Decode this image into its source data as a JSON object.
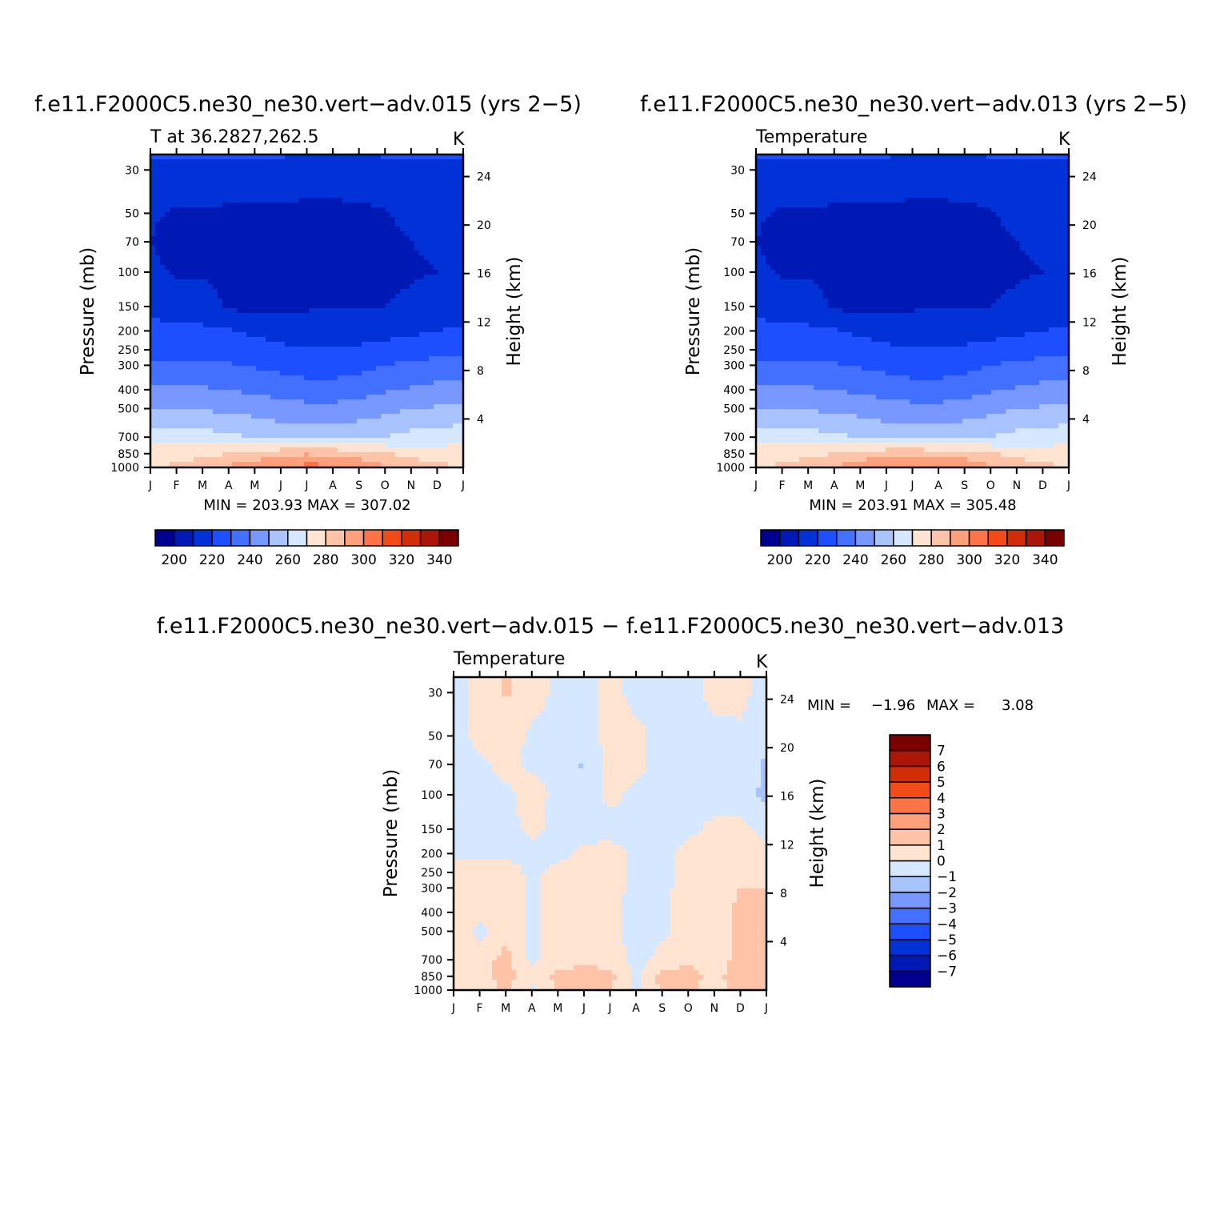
{
  "chart_data": [
    {
      "type": "heatmap",
      "title": "f.e11.F2000C5.ne30_ne30.vert−adv.015 (yrs 2−5)",
      "left_label": "T at 36.2827,262.5",
      "units": "K",
      "xlabel": "",
      "ylabel": "Pressure (mb)",
      "y2label": "Height (km)",
      "x_ticks": [
        "J",
        "F",
        "M",
        "A",
        "M",
        "J",
        "J",
        "A",
        "S",
        "O",
        "N",
        "D",
        "J"
      ],
      "pressure_ticks": [
        30,
        50,
        70,
        100,
        150,
        200,
        250,
        300,
        400,
        500,
        700,
        850,
        1000
      ],
      "pressure_tick_labels": [
        "30",
        "50",
        "70",
        "100",
        "150",
        "200",
        "250",
        "300",
        "400",
        "500",
        "700",
        "850",
        "1000"
      ],
      "ylim": [
        1000,
        25
      ],
      "height_ticks": [
        4,
        8,
        12,
        16,
        20,
        24
      ],
      "height_tick_labels": [
        "4",
        "8",
        "12",
        "16",
        "20",
        "24"
      ],
      "stats_text": "MIN = 203.93 MAX = 307.02",
      "min": 203.93,
      "max": 307.02,
      "colorbar": {
        "orientation": "horizontal",
        "levels": [
          200,
          210,
          220,
          230,
          240,
          250,
          260,
          270,
          280,
          290,
          300,
          310,
          320,
          330,
          340
        ],
        "tick_labels": [
          "200",
          "220",
          "240",
          "260",
          "280",
          "300",
          "320",
          "340"
        ],
        "colors": [
          "#00008f",
          "#0019b5",
          "#0032d7",
          "#1e4fff",
          "#4470ff",
          "#7898ff",
          "#a9c3ff",
          "#d6e8ff",
          "#ffe5d1",
          "#ffc4a7",
          "#ffa07d",
          "#ff7447",
          "#f34b18",
          "#d12d07",
          "#ab1606",
          "#7a0000"
        ]
      },
      "field": {
        "x_months": [
          "J",
          "F",
          "M",
          "A",
          "M",
          "J",
          "J",
          "A",
          "S",
          "O",
          "N",
          "D",
          "J"
        ],
        "pressure_levels": [
          25,
          30,
          50,
          70,
          100,
          150,
          200,
          250,
          300,
          400,
          500,
          700,
          850,
          1000
        ],
        "temperature_K": [
          [
            221,
            221,
            221,
            221,
            221,
            221,
            219,
            219,
            219,
            221,
            221,
            221,
            221
          ],
          [
            217,
            217,
            217,
            217,
            217,
            217,
            216,
            216,
            216,
            217,
            217,
            217,
            217
          ],
          [
            211,
            209,
            209,
            208,
            208,
            208,
            207,
            207,
            208,
            209,
            214,
            215,
            214
          ],
          [
            210,
            207,
            207,
            206,
            206,
            206,
            206,
            206,
            206,
            207,
            210,
            211,
            211
          ],
          [
            212,
            209,
            209,
            207,
            206,
            206,
            206,
            206,
            206,
            207,
            209,
            210,
            212
          ],
          [
            218,
            215,
            214,
            209,
            206,
            208,
            209,
            209,
            210,
            210,
            212,
            213,
            216
          ],
          [
            223,
            222,
            222,
            221,
            218,
            216,
            215,
            215,
            215,
            216,
            218,
            220,
            221
          ],
          [
            227,
            227,
            227,
            226,
            225,
            222,
            221,
            221,
            222,
            224,
            226,
            227,
            227
          ],
          [
            232,
            232,
            232,
            231,
            229,
            227,
            225,
            225,
            227,
            230,
            232,
            233,
            234
          ],
          [
            242,
            242,
            241,
            240,
            238,
            236,
            234,
            234,
            236,
            239,
            241,
            243,
            243
          ],
          [
            251,
            250,
            249,
            248,
            246,
            244,
            243,
            243,
            244,
            247,
            250,
            251,
            252
          ],
          [
            266,
            265,
            264,
            262,
            260,
            257,
            255,
            255,
            258,
            260,
            263,
            265,
            266
          ],
          [
            275,
            276,
            277,
            280,
            284,
            287,
            289,
            288,
            285,
            281,
            277,
            275,
            275
          ],
          [
            280,
            282,
            286,
            292,
            297,
            300,
            304,
            303,
            299,
            292,
            286,
            283,
            280
          ]
        ]
      }
    },
    {
      "type": "heatmap",
      "title": "f.e11.F2000C5.ne30_ne30.vert−adv.013 (yrs 2−5)",
      "left_label": "Temperature",
      "units": "K",
      "xlabel": "",
      "ylabel": "Pressure (mb)",
      "y2label": "Height (km)",
      "x_ticks": [
        "J",
        "F",
        "M",
        "A",
        "M",
        "J",
        "J",
        "A",
        "S",
        "O",
        "N",
        "D",
        "J"
      ],
      "pressure_ticks": [
        30,
        50,
        70,
        100,
        150,
        200,
        250,
        300,
        400,
        500,
        700,
        850,
        1000
      ],
      "pressure_tick_labels": [
        "30",
        "50",
        "70",
        "100",
        "150",
        "200",
        "250",
        "300",
        "400",
        "500",
        "700",
        "850",
        "1000"
      ],
      "ylim": [
        1000,
        25
      ],
      "height_ticks": [
        4,
        8,
        12,
        16,
        20,
        24
      ],
      "height_tick_labels": [
        "4",
        "8",
        "12",
        "16",
        "20",
        "24"
      ],
      "stats_text": "MIN = 203.91 MAX = 305.48",
      "min": 203.91,
      "max": 305.48,
      "colorbar": {
        "orientation": "horizontal",
        "levels": [
          200,
          210,
          220,
          230,
          240,
          250,
          260,
          270,
          280,
          290,
          300,
          310,
          320,
          330,
          340
        ],
        "tick_labels": [
          "200",
          "220",
          "240",
          "260",
          "280",
          "300",
          "320",
          "340"
        ],
        "colors": [
          "#00008f",
          "#0019b5",
          "#0032d7",
          "#1e4fff",
          "#4470ff",
          "#7898ff",
          "#a9c3ff",
          "#d6e8ff",
          "#ffe5d1",
          "#ffc4a7",
          "#ffa07d",
          "#ff7447",
          "#f34b18",
          "#d12d07",
          "#ab1606",
          "#7a0000"
        ]
      },
      "field": {
        "x_months": [
          "J",
          "F",
          "M",
          "A",
          "M",
          "J",
          "J",
          "A",
          "S",
          "O",
          "N",
          "D",
          "J"
        ],
        "pressure_levels": [
          25,
          30,
          50,
          70,
          100,
          150,
          200,
          250,
          300,
          400,
          500,
          700,
          850,
          1000
        ],
        "temperature_K": [
          [
            221,
            221,
            221,
            221,
            221,
            221,
            219,
            219,
            219,
            221,
            221,
            221,
            221
          ],
          [
            217,
            217,
            217,
            217,
            217,
            217,
            216,
            216,
            216,
            217,
            217,
            217,
            217
          ],
          [
            211,
            209,
            209,
            208,
            208,
            208,
            207,
            207,
            208,
            209,
            214,
            215,
            212
          ],
          [
            210,
            207,
            207,
            206,
            206,
            206,
            206,
            206,
            206,
            207,
            210,
            211,
            210
          ],
          [
            212,
            209,
            209,
            207,
            206,
            206,
            206,
            206,
            206,
            207,
            209,
            210,
            212
          ],
          [
            218,
            215,
            214,
            209,
            206,
            208,
            209,
            209,
            210,
            210,
            212,
            213,
            216
          ],
          [
            223,
            222,
            222,
            221,
            218,
            216,
            215,
            215,
            215,
            216,
            218,
            220,
            221
          ],
          [
            227,
            227,
            227,
            226,
            225,
            222,
            221,
            221,
            222,
            224,
            226,
            227,
            227
          ],
          [
            232,
            232,
            232,
            231,
            229,
            227,
            225,
            225,
            227,
            230,
            232,
            233,
            234
          ],
          [
            242,
            242,
            241,
            240,
            238,
            236,
            234,
            234,
            236,
            239,
            241,
            243,
            243
          ],
          [
            251,
            250,
            249,
            248,
            246,
            244,
            243,
            243,
            244,
            247,
            250,
            251,
            252
          ],
          [
            266,
            265,
            264,
            262,
            260,
            257,
            255,
            255,
            258,
            260,
            263,
            265,
            266
          ],
          [
            275,
            276,
            277,
            280,
            284,
            287,
            288,
            287,
            285,
            281,
            277,
            275,
            275
          ],
          [
            280,
            282,
            286,
            291,
            296,
            300,
            303,
            302,
            298,
            292,
            286,
            283,
            280
          ]
        ]
      }
    },
    {
      "type": "heatmap",
      "title": "f.e11.F2000C5.ne30_ne30.vert−adv.015 − f.e11.F2000C5.ne30_ne30.vert−adv.013",
      "left_label": "Temperature",
      "units": "K",
      "xlabel": "",
      "ylabel": "Pressure (mb)",
      "y2label": "Height (km)",
      "x_ticks": [
        "J",
        "F",
        "M",
        "A",
        "M",
        "J",
        "J",
        "A",
        "S",
        "O",
        "N",
        "D",
        "J"
      ],
      "pressure_ticks": [
        30,
        50,
        70,
        100,
        150,
        200,
        250,
        300,
        400,
        500,
        700,
        850,
        1000
      ],
      "pressure_tick_labels": [
        "30",
        "50",
        "70",
        "100",
        "150",
        "200",
        "250",
        "300",
        "400",
        "500",
        "700",
        "850",
        "1000"
      ],
      "ylim": [
        1000,
        25
      ],
      "height_ticks": [
        4,
        8,
        12,
        16,
        20,
        24
      ],
      "height_tick_labels": [
        "4",
        "8",
        "12",
        "16",
        "20",
        "24"
      ],
      "stats_label_min": "MIN =",
      "stats_value_min": "−1.96",
      "stats_label_max": "MAX =",
      "stats_value_max": "3.08",
      "min": -1.96,
      "max": 3.08,
      "colorbar": {
        "orientation": "vertical",
        "levels": [
          -7,
          -6,
          -5,
          -4,
          -3,
          -2,
          -1,
          0,
          1,
          2,
          3,
          4,
          5,
          6,
          7
        ],
        "tick_labels": [
          "−7",
          "−6",
          "−5",
          "−4",
          "−3",
          "−2",
          "−1",
          "0",
          "1",
          "2",
          "3",
          "4",
          "5",
          "6",
          "7"
        ],
        "colors": [
          "#00008f",
          "#0019b5",
          "#0032d7",
          "#1e4fff",
          "#4470ff",
          "#7898ff",
          "#a9c3ff",
          "#d6e8ff",
          "#ffe5d1",
          "#ffc4a7",
          "#ffa07d",
          "#ff7447",
          "#f34b18",
          "#d12d07",
          "#ab1606",
          "#7a0000"
        ]
      },
      "field": {
        "x_months": [
          "J",
          "F",
          "M",
          "A",
          "M",
          "J",
          "J",
          "A",
          "S",
          "O",
          "N",
          "D",
          "J"
        ],
        "pressure_levels": [
          25,
          30,
          50,
          70,
          100,
          150,
          200,
          250,
          300,
          400,
          500,
          700,
          850,
          1000
        ],
        "temperature_diff_K": [
          [
            -0.4,
            0.4,
            1.2,
            0.5,
            -0.3,
            -0.4,
            0.4,
            -0.4,
            -0.3,
            -0.4,
            0.4,
            0.4,
            -0.5
          ],
          [
            -0.4,
            0.4,
            1.1,
            0.5,
            -0.3,
            -0.4,
            0.4,
            -0.4,
            -0.3,
            -0.4,
            0.3,
            0.3,
            -0.5
          ],
          [
            -0.5,
            0.4,
            0.5,
            -0.2,
            -0.4,
            -0.5,
            0.4,
            0.3,
            -0.4,
            -0.4,
            -0.3,
            -0.2,
            -0.7
          ],
          [
            -0.6,
            -0.3,
            0.4,
            -0.3,
            -0.5,
            -1.1,
            0.4,
            0.3,
            -0.4,
            -0.5,
            -0.4,
            -0.4,
            -1.2
          ],
          [
            -0.4,
            -0.4,
            -0.3,
            0.6,
            -0.4,
            -0.6,
            0.3,
            -0.3,
            -0.4,
            -0.5,
            -0.5,
            -0.6,
            -1.2
          ],
          [
            -0.4,
            -0.4,
            -0.4,
            0.3,
            -0.4,
            -0.5,
            -0.4,
            -0.4,
            -0.4,
            -0.3,
            0.3,
            0.3,
            -0.4
          ],
          [
            -0.3,
            -0.3,
            -0.3,
            -0.4,
            -0.4,
            0.3,
            0.4,
            -0.3,
            -0.4,
            0.4,
            0.5,
            0.5,
            0.5
          ],
          [
            0.5,
            0.6,
            0.6,
            -0.3,
            0.4,
            0.5,
            0.5,
            -0.3,
            -0.4,
            0.5,
            0.6,
            0.6,
            0.6
          ],
          [
            0.8,
            0.9,
            0.8,
            -0.2,
            0.5,
            0.6,
            0.5,
            -0.4,
            -0.3,
            0.5,
            0.6,
            1.0,
            1.0
          ],
          [
            0.9,
            0.5,
            0.7,
            -0.3,
            0.6,
            0.8,
            0.4,
            -0.5,
            -0.3,
            0.6,
            0.7,
            1.2,
            1.3
          ],
          [
            0.8,
            -0.3,
            0.8,
            -0.3,
            0.5,
            0.6,
            0.4,
            -0.5,
            -0.2,
            0.6,
            0.7,
            1.2,
            1.3
          ],
          [
            0.7,
            0.6,
            1.3,
            -0.3,
            0.5,
            0.7,
            0.6,
            -0.4,
            0.3,
            0.8,
            0.5,
            1.3,
            1.3
          ],
          [
            0.8,
            0.5,
            1.5,
            0.4,
            1.3,
            1.5,
            1.3,
            -0.3,
            1.4,
            1.4,
            0.6,
            1.7,
            1.2
          ],
          [
            0.6,
            0.4,
            1.2,
            -0.3,
            1.0,
            1.4,
            1.0,
            -0.4,
            1.2,
            1.3,
            0.5,
            1.5,
            1.0
          ]
        ]
      }
    }
  ]
}
